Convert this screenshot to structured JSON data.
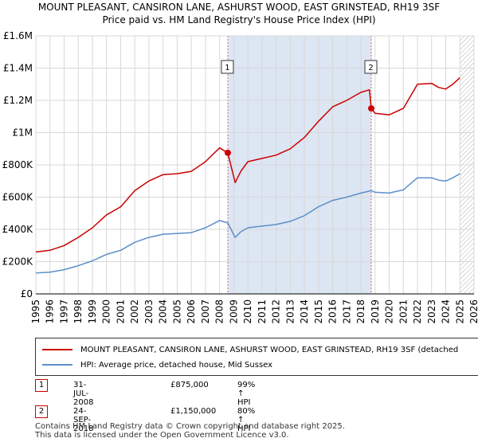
{
  "colors": {
    "property": "#cc0000",
    "hpi": "#5b8fc9",
    "sale_band": "#dde6f3",
    "sale_line": "#e06070",
    "grid": "#d8d8d8",
    "future_hatch": "#b0b0b0"
  },
  "chart_data": {
    "type": "line",
    "title": "MOUNT PLEASANT, CANSIRON LANE, ASHURST WOOD, EAST GRINSTEAD, RH19 3SF",
    "subtitle": "Price paid vs. HM Land Registry's House Price Index (HPI)",
    "xlim": [
      1995,
      2026
    ],
    "ylim": [
      0,
      1600000
    ],
    "x_ticks": [
      "1995",
      "1996",
      "1997",
      "1998",
      "1999",
      "2000",
      "2001",
      "2002",
      "2003",
      "2004",
      "2005",
      "2006",
      "2007",
      "2008",
      "2009",
      "2010",
      "2011",
      "2012",
      "2013",
      "2014",
      "2015",
      "2016",
      "2017",
      "2018",
      "2019",
      "2020",
      "2021",
      "2022",
      "2023",
      "2024",
      "2025",
      "2026"
    ],
    "y_ticks": [
      {
        "value": 0,
        "label": "£0"
      },
      {
        "value": 200000,
        "label": "£200K"
      },
      {
        "value": 400000,
        "label": "£400K"
      },
      {
        "value": 600000,
        "label": "£600K"
      },
      {
        "value": 800000,
        "label": "£800K"
      },
      {
        "value": 1000000,
        "label": "£1M"
      },
      {
        "value": 1200000,
        "label": "£1.2M"
      },
      {
        "value": 1400000,
        "label": "£1.4M"
      },
      {
        "value": 1600000,
        "label": "£1.6M"
      }
    ],
    "grid": true,
    "shaded_regions": [
      {
        "from": 2008.58,
        "to": 2018.73
      },
      {
        "from": 2025.0,
        "to": 2026.0,
        "style": "hatched"
      }
    ],
    "series": [
      {
        "name": "MOUNT PLEASANT, CANSIRON LANE, ASHURST WOOD, EAST GRINSTEAD, RH19 3SF (detached",
        "x": [
          1995,
          1996,
          1997,
          1998,
          1999,
          2000,
          2001,
          2002,
          2003,
          2004,
          2005,
          2006,
          2007,
          2008,
          2008.58,
          2009.1,
          2009.5,
          2010,
          2011,
          2012,
          2013,
          2014,
          2015,
          2016,
          2017,
          2018,
          2018.6,
          2018.73,
          2019,
          2020,
          2021,
          2022,
          2023,
          2023.5,
          2024,
          2024.5,
          2025
        ],
        "y": [
          260000,
          270000,
          300000,
          350000,
          410000,
          490000,
          540000,
          640000,
          700000,
          740000,
          745000,
          760000,
          820000,
          905000,
          875000,
          690000,
          760000,
          820000,
          840000,
          860000,
          900000,
          970000,
          1070000,
          1160000,
          1200000,
          1250000,
          1265000,
          1150000,
          1120000,
          1110000,
          1150000,
          1300000,
          1305000,
          1280000,
          1270000,
          1300000,
          1340000
        ]
      },
      {
        "name": "HPI: Average price, detached house, Mid Sussex",
        "x": [
          1995,
          1996,
          1997,
          1998,
          1999,
          2000,
          2001,
          2002,
          2003,
          2004,
          2005,
          2006,
          2007,
          2008,
          2008.58,
          2009.1,
          2009.5,
          2010,
          2011,
          2012,
          2013,
          2014,
          2015,
          2016,
          2017,
          2018,
          2018.73,
          2019,
          2020,
          2021,
          2022,
          2023,
          2023.5,
          2024,
          2024.5,
          2025
        ],
        "y": [
          130000,
          135000,
          150000,
          175000,
          205000,
          245000,
          270000,
          320000,
          350000,
          370000,
          375000,
          380000,
          410000,
          455000,
          440000,
          350000,
          385000,
          410000,
          420000,
          430000,
          450000,
          485000,
          540000,
          580000,
          600000,
          625000,
          640000,
          630000,
          625000,
          645000,
          720000,
          720000,
          705000,
          700000,
          720000,
          745000
        ]
      }
    ],
    "annotations": [
      {
        "label": "1",
        "x": 2008.58,
        "y": 875000
      },
      {
        "label": "2",
        "x": 2018.73,
        "y": 1150000
      }
    ]
  },
  "legend": {
    "property_label": "MOUNT PLEASANT, CANSIRON LANE, ASHURST WOOD, EAST GRINSTEAD, RH19 3SF (detached",
    "hpi_label": "HPI: Average price, detached house, Mid Sussex"
  },
  "sales": [
    {
      "num": "1",
      "date": "31-JUL-2008",
      "price": "£875,000",
      "hpi": "99% ↑ HPI"
    },
    {
      "num": "2",
      "date": "24-SEP-2018",
      "price": "£1,150,000",
      "hpi": "80% ↑ HPI"
    }
  ],
  "footer": {
    "line1": "Contains HM Land Registry data © Crown copyright and database right 2025.",
    "line2": "This data is licensed under the Open Government Licence v3.0."
  }
}
